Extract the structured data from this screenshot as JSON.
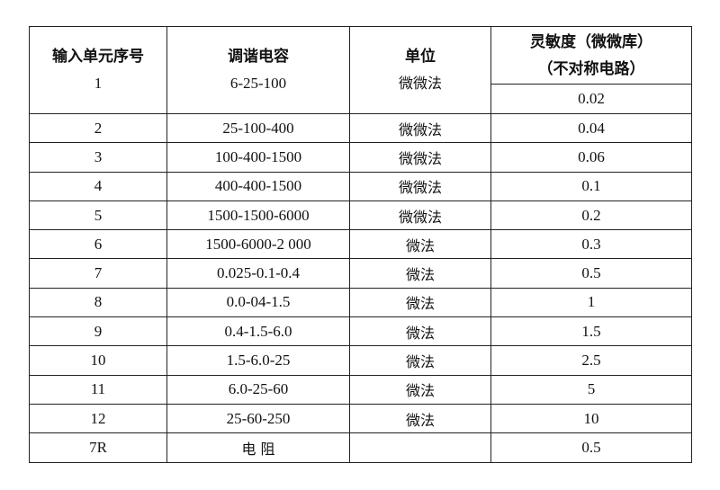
{
  "header": {
    "col1": "输入单元序号",
    "col2": "调谐电容",
    "col3": "单位",
    "col4_line1": "灵敏度（微微库）",
    "col4_line2": "（不对称电路）"
  },
  "rows": [
    {
      "id": "1",
      "capacitance": "6-25-100",
      "unit": "微微法",
      "sensitivity": "0.02"
    },
    {
      "id": "2",
      "capacitance": "25-100-400",
      "unit": "微微法",
      "sensitivity": "0.04"
    },
    {
      "id": "3",
      "capacitance": "100-400-1500",
      "unit": "微微法",
      "sensitivity": "0.06"
    },
    {
      "id": "4",
      "capacitance": "400-400-1500",
      "unit": "微微法",
      "sensitivity": "0.1"
    },
    {
      "id": "5",
      "capacitance": "1500-1500-6000",
      "unit": "微微法",
      "sensitivity": "0.2"
    },
    {
      "id": "6",
      "capacitance": "1500-6000-2 000",
      "unit": "微法",
      "sensitivity": "0.3"
    },
    {
      "id": "7",
      "capacitance": "0.025-0.1-0.4",
      "unit": "微法",
      "sensitivity": "0.5"
    },
    {
      "id": "8",
      "capacitance": "0.0-04-1.5",
      "unit": "微法",
      "sensitivity": "1"
    },
    {
      "id": "9",
      "capacitance": "0.4-1.5-6.0",
      "unit": "微法",
      "sensitivity": "1.5"
    },
    {
      "id": "10",
      "capacitance": "1.5-6.0-25",
      "unit": "微法",
      "sensitivity": "2.5"
    },
    {
      "id": "11",
      "capacitance": "6.0-25-60",
      "unit": "微法",
      "sensitivity": "5"
    },
    {
      "id": "12",
      "capacitance": "25-60-250",
      "unit": "微法",
      "sensitivity": "10"
    },
    {
      "id": "7R",
      "capacitance": "电 阻",
      "unit": "",
      "sensitivity": "0.5"
    }
  ]
}
